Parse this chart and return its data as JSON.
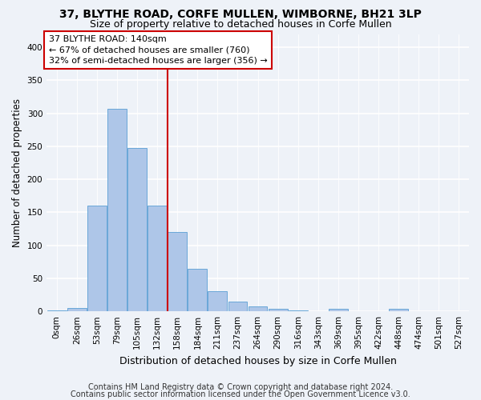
{
  "title1": "37, BLYTHE ROAD, CORFE MULLEN, WIMBORNE, BH21 3LP",
  "title2": "Size of property relative to detached houses in Corfe Mullen",
  "xlabel": "Distribution of detached houses by size in Corfe Mullen",
  "ylabel": "Number of detached properties",
  "bin_labels": [
    "0sqm",
    "26sqm",
    "53sqm",
    "79sqm",
    "105sqm",
    "132sqm",
    "158sqm",
    "184sqm",
    "211sqm",
    "237sqm",
    "264sqm",
    "290sqm",
    "316sqm",
    "343sqm",
    "369sqm",
    "395sqm",
    "422sqm",
    "448sqm",
    "474sqm",
    "501sqm",
    "527sqm"
  ],
  "bar_heights": [
    2,
    5,
    160,
    307,
    247,
    160,
    120,
    65,
    30,
    15,
    8,
    4,
    1,
    0,
    4,
    0,
    0,
    4,
    0,
    0,
    0
  ],
  "bar_color": "#aec6e8",
  "bar_edge_color": "#5a9fd4",
  "vline_color": "#cc0000",
  "annotation_line1": "37 BLYTHE ROAD: 140sqm",
  "annotation_line2": "← 67% of detached houses are smaller (760)",
  "annotation_line3": "32% of semi-detached houses are larger (356) →",
  "annotation_box_color": "#ffffff",
  "annotation_box_edge": "#cc0000",
  "ylim": [
    0,
    420
  ],
  "yticks": [
    0,
    50,
    100,
    150,
    200,
    250,
    300,
    350,
    400
  ],
  "footer1": "Contains HM Land Registry data © Crown copyright and database right 2024.",
  "footer2": "Contains public sector information licensed under the Open Government Licence v3.0.",
  "bg_color": "#eef2f8",
  "grid_color": "#ffffff",
  "title1_fontsize": 10,
  "title2_fontsize": 9,
  "xlabel_fontsize": 9,
  "ylabel_fontsize": 8.5,
  "tick_fontsize": 7.5,
  "annot_fontsize": 8,
  "footer_fontsize": 7
}
